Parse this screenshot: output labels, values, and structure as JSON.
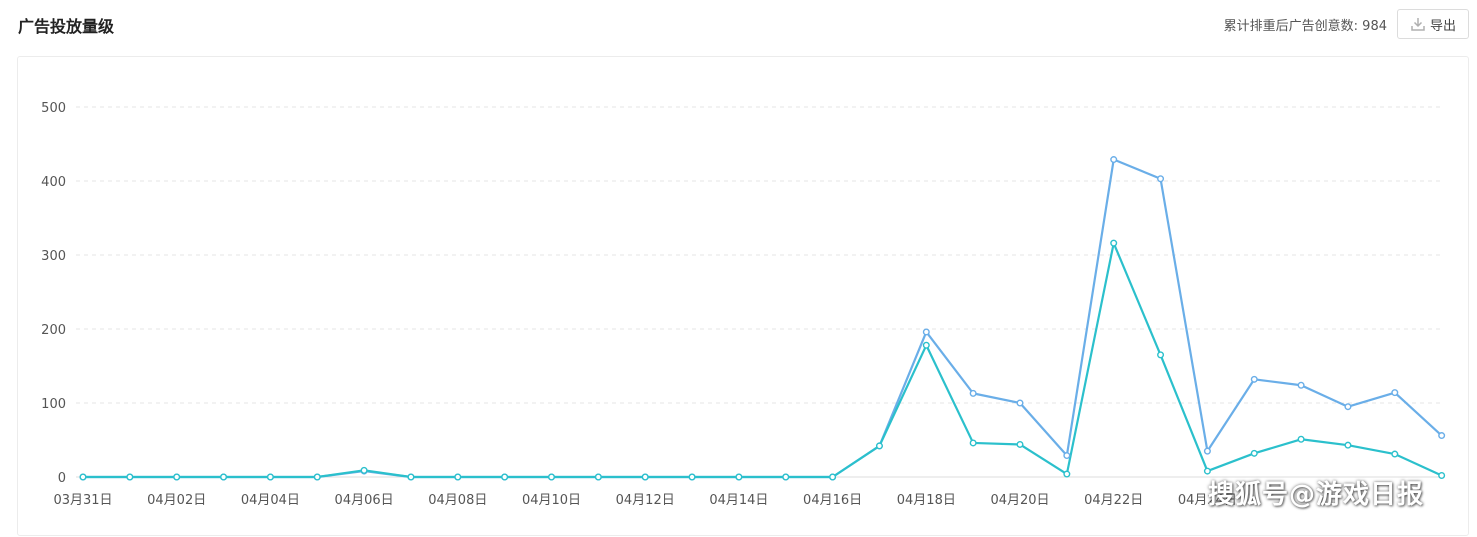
{
  "header": {
    "title": "广告投放量级",
    "dedup_label": "累计排重后广告创意数: 984",
    "export_label": "导出"
  },
  "colors": {
    "series_total": "#6aaee8",
    "series_dedup": "#2bc0cc",
    "grid": "#e6e6e6"
  },
  "watermark": "搜狐号@游戏日报",
  "chart_data": {
    "type": "line",
    "title": "",
    "xlabel": "",
    "ylabel": "",
    "ylim": [
      0,
      500
    ],
    "yticks": [
      0,
      100,
      200,
      300,
      400,
      500
    ],
    "grid": true,
    "x": [
      "03月31日",
      "04月01日",
      "04月02日",
      "04月03日",
      "04月04日",
      "04月05日",
      "04月06日",
      "04月07日",
      "04月08日",
      "04月09日",
      "04月10日",
      "04月11日",
      "04月12日",
      "04月13日",
      "04月14日",
      "04月15日",
      "04月16日",
      "04月17日",
      "04月18日",
      "04月19日",
      "04月20日",
      "04月21日",
      "04月22日",
      "04月23日",
      "04月24日",
      "04月25日",
      "04月26日",
      "04月27日",
      "04月28日",
      "04月29日"
    ],
    "xtick_labels": [
      "03月31日",
      "04月02日",
      "04月04日",
      "04月06日",
      "04月08日",
      "04月10日",
      "04月12日",
      "04月14日",
      "04月16日",
      "04月18日",
      "04月20日",
      "04月22日",
      "04月24日"
    ],
    "series": [
      {
        "color": "#6aaee8",
        "values": [
          0,
          0,
          0,
          0,
          0,
          0,
          8,
          0,
          0,
          0,
          0,
          0,
          0,
          0,
          0,
          0,
          0,
          42,
          196,
          113,
          100,
          29,
          429,
          403,
          35,
          132,
          124,
          95,
          114,
          56
        ]
      },
      {
        "color": "#2bc0cc",
        "values": [
          0,
          0,
          0,
          0,
          0,
          0,
          9,
          0,
          0,
          0,
          0,
          0,
          0,
          0,
          0,
          0,
          0,
          42,
          178,
          46,
          44,
          4,
          316,
          165,
          8,
          32,
          51,
          43,
          31,
          2
        ]
      }
    ]
  }
}
